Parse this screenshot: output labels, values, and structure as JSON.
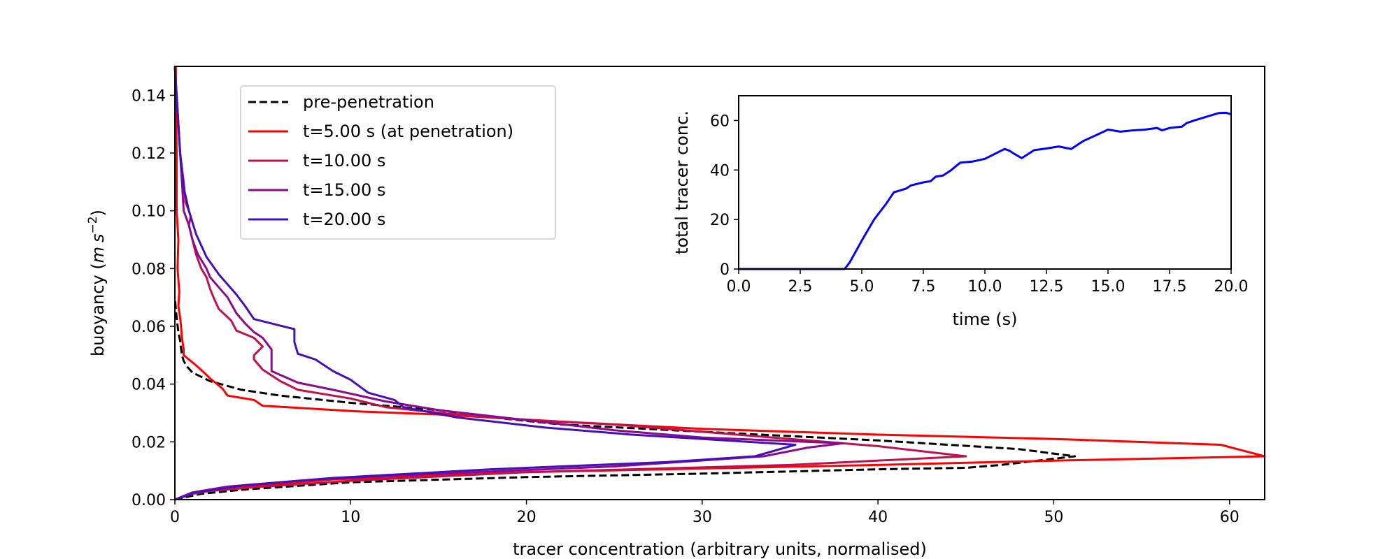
{
  "chart_data": [
    {
      "type": "line",
      "xlabel": "tracer concentration (arbitrary units, normalised)",
      "ylabel": "buoyancy ($m\\,s^{-2}$)",
      "ylabel_parts": {
        "prefix": "buoyancy (",
        "unit1": "m",
        "unit2": "s",
        "exponent": "−2",
        "suffix": ")"
      },
      "xlim": [
        0,
        62
      ],
      "ylim": [
        0,
        0.15
      ],
      "xticks": [
        0,
        10,
        20,
        30,
        40,
        50,
        60
      ],
      "yticks": [
        0.0,
        0.02,
        0.04,
        0.06,
        0.08,
        0.1,
        0.12,
        0.14
      ],
      "ytick_labels": [
        "0.00",
        "0.02",
        "0.04",
        "0.06",
        "0.08",
        "0.10",
        "0.12",
        "0.14"
      ],
      "xtick_labels": [
        "0",
        "10",
        "20",
        "30",
        "40",
        "50",
        "60"
      ],
      "grid": false,
      "legend_position": "upper-left",
      "series": [
        {
          "name": "pre-penetration",
          "color": "#000000",
          "dash": "dashed",
          "points": [
            [
              0,
              0.0
            ],
            [
              1.5,
              0.002
            ],
            [
              4,
              0.0035
            ],
            [
              10,
              0.006
            ],
            [
              20,
              0.0078
            ],
            [
              30,
              0.009
            ],
            [
              40,
              0.0105
            ],
            [
              45,
              0.011
            ],
            [
              47,
              0.012
            ],
            [
              51.2,
              0.015
            ],
            [
              48,
              0.0175
            ],
            [
              40,
              0.0205
            ],
            [
              30,
              0.0235
            ],
            [
              22,
              0.026
            ],
            [
              18,
              0.0285
            ],
            [
              15,
              0.031
            ],
            [
              10,
              0.0335
            ],
            [
              6,
              0.036
            ],
            [
              3.8,
              0.038
            ],
            [
              2,
              0.041
            ],
            [
              1,
              0.044
            ],
            [
              0.7,
              0.046
            ],
            [
              0.5,
              0.048
            ],
            [
              0.4,
              0.05
            ],
            [
              0.3,
              0.055
            ],
            [
              0.2,
              0.058
            ],
            [
              0.12,
              0.062
            ],
            [
              0.05,
              0.066
            ],
            [
              0,
              0.07
            ]
          ]
        },
        {
          "name": "t=5.00 s (at penetration)",
          "color": "#ff0000",
          "dash": "solid",
          "points": [
            [
              0,
              0.0
            ],
            [
              0.5,
              0.001
            ],
            [
              1,
              0.002
            ],
            [
              1.5,
              0.003
            ],
            [
              4,
              0.0045
            ],
            [
              9,
              0.007
            ],
            [
              20,
              0.0095
            ],
            [
              40,
              0.012
            ],
            [
              50,
              0.0135
            ],
            [
              62,
              0.015
            ],
            [
              59.5,
              0.019
            ],
            [
              50,
              0.021
            ],
            [
              40,
              0.0225
            ],
            [
              30,
              0.0245
            ],
            [
              22,
              0.027
            ],
            [
              15,
              0.0295
            ],
            [
              10.5,
              0.0305
            ],
            [
              5,
              0.0325
            ],
            [
              4.5,
              0.0345
            ],
            [
              3,
              0.036
            ],
            [
              2.7,
              0.0385
            ],
            [
              2,
              0.042
            ],
            [
              1.3,
              0.046
            ],
            [
              0.5,
              0.05
            ],
            [
              0.5,
              0.052
            ],
            [
              0.4,
              0.056
            ],
            [
              0.35,
              0.06
            ],
            [
              0.3,
              0.063
            ],
            [
              0.2,
              0.067
            ],
            [
              0.25,
              0.072
            ],
            [
              0.15,
              0.08
            ],
            [
              0.2,
              0.09
            ],
            [
              0.1,
              0.1
            ],
            [
              0.1,
              0.12
            ],
            [
              0.05,
              0.15
            ]
          ]
        },
        {
          "name": "t=10.00 s",
          "color": "#c1114b",
          "dash": "solid",
          "points": [
            [
              0,
              0.0
            ],
            [
              1,
              0.002
            ],
            [
              2,
              0.003
            ],
            [
              5,
              0.0045
            ],
            [
              10,
              0.0065
            ],
            [
              20,
              0.0095
            ],
            [
              35,
              0.012
            ],
            [
              45,
              0.015
            ],
            [
              40,
              0.0185
            ],
            [
              35,
              0.021
            ],
            [
              25,
              0.026
            ],
            [
              20,
              0.0275
            ],
            [
              16,
              0.0295
            ],
            [
              12,
              0.032
            ],
            [
              10,
              0.035
            ],
            [
              7,
              0.038
            ],
            [
              6,
              0.041
            ],
            [
              5,
              0.045
            ],
            [
              4.5,
              0.0485
            ],
            [
              4.5,
              0.05
            ],
            [
              5,
              0.053
            ],
            [
              4.5,
              0.056
            ],
            [
              3.5,
              0.0585
            ],
            [
              3.2,
              0.062
            ],
            [
              2.5,
              0.066
            ],
            [
              2.2,
              0.07
            ],
            [
              2,
              0.073
            ],
            [
              1.8,
              0.077
            ],
            [
              1.5,
              0.08
            ],
            [
              1.2,
              0.085
            ],
            [
              1,
              0.09
            ],
            [
              0.8,
              0.095
            ],
            [
              0.9,
              0.098
            ],
            [
              0.8,
              0.1
            ],
            [
              0.6,
              0.103
            ],
            [
              0.5,
              0.11
            ],
            [
              0.3,
              0.12
            ],
            [
              0.2,
              0.13
            ],
            [
              0.1,
              0.14
            ],
            [
              0,
              0.15
            ]
          ]
        },
        {
          "name": "t=15.00 s",
          "color": "#8b0a8e",
          "dash": "solid",
          "points": [
            [
              0,
              0.0
            ],
            [
              1,
              0.0025
            ],
            [
              3,
              0.0045
            ],
            [
              8,
              0.007
            ],
            [
              15,
              0.009
            ],
            [
              25,
              0.0115
            ],
            [
              33.5,
              0.015
            ],
            [
              36,
              0.018
            ],
            [
              38,
              0.0195
            ],
            [
              30,
              0.0215
            ],
            [
              25,
              0.024
            ],
            [
              20,
              0.0275
            ],
            [
              15,
              0.031
            ],
            [
              12,
              0.034
            ],
            [
              9,
              0.038
            ],
            [
              7,
              0.0405
            ],
            [
              5.5,
              0.0445
            ],
            [
              5.5,
              0.05
            ],
            [
              5.5,
              0.052
            ],
            [
              5,
              0.056
            ],
            [
              4.5,
              0.058
            ],
            [
              4,
              0.061
            ],
            [
              3.5,
              0.0645
            ],
            [
              3,
              0.07
            ],
            [
              2.5,
              0.0735
            ],
            [
              2,
              0.077
            ],
            [
              1.8,
              0.08
            ],
            [
              1.3,
              0.085
            ],
            [
              1,
              0.09
            ],
            [
              0.8,
              0.095
            ],
            [
              0.5,
              0.1
            ],
            [
              0.4,
              0.11
            ],
            [
              0.3,
              0.12
            ],
            [
              0.2,
              0.13
            ],
            [
              0.1,
              0.14
            ],
            [
              0,
              0.15
            ]
          ]
        },
        {
          "name": "t=20.00 s",
          "color": "#4410ba",
          "dash": "solid",
          "points": [
            [
              0,
              0.0
            ],
            [
              1.2,
              0.0025
            ],
            [
              4,
              0.005
            ],
            [
              9,
              0.0075
            ],
            [
              18,
              0.0105
            ],
            [
              28,
              0.013
            ],
            [
              33,
              0.015
            ],
            [
              35.3,
              0.019
            ],
            [
              26,
              0.0225
            ],
            [
              21,
              0.025
            ],
            [
              16,
              0.0285
            ],
            [
              13,
              0.032
            ],
            [
              12.5,
              0.0345
            ],
            [
              11,
              0.037
            ],
            [
              10,
              0.0415
            ],
            [
              9,
              0.0445
            ],
            [
              8,
              0.0485
            ],
            [
              7,
              0.0505
            ],
            [
              6.8,
              0.0545
            ],
            [
              6.8,
              0.059
            ],
            [
              5.5,
              0.061
            ],
            [
              4.5,
              0.0625
            ],
            [
              4,
              0.067
            ],
            [
              3.5,
              0.071
            ],
            [
              2.5,
              0.078
            ],
            [
              1.8,
              0.084
            ],
            [
              1.2,
              0.092
            ],
            [
              0.8,
              0.1
            ],
            [
              0.5,
              0.108
            ],
            [
              0.3,
              0.12
            ],
            [
              0.2,
              0.13
            ],
            [
              0.1,
              0.14
            ],
            [
              0,
              0.15
            ]
          ]
        }
      ]
    },
    {
      "type": "line",
      "inset": true,
      "xlabel": "time (s)",
      "ylabel": "total tracer conc.",
      "xlim": [
        0,
        20
      ],
      "ylim": [
        0,
        70
      ],
      "xticks": [
        0,
        2.5,
        5,
        7.5,
        10,
        12.5,
        15,
        17.5,
        20
      ],
      "xtick_labels": [
        "0.0",
        "2.5",
        "5.0",
        "7.5",
        "10.0",
        "12.5",
        "15.0",
        "17.5",
        "20.0"
      ],
      "yticks": [
        0,
        20,
        40,
        60
      ],
      "ytick_labels": [
        "0",
        "20",
        "40",
        "60"
      ],
      "grid": false,
      "series": [
        {
          "color": "#0000ff",
          "x": [
            0,
            1,
            2,
            3,
            4,
            4.1,
            4.3,
            4.5,
            5,
            5.5,
            6,
            6.3,
            6.8,
            7,
            7.5,
            7.8,
            8,
            8.3,
            8.6,
            9,
            9.5,
            10,
            10.5,
            10.8,
            11,
            11.2,
            11.5,
            12,
            12.5,
            13,
            13.5,
            14,
            14.5,
            15,
            15.5,
            16,
            16.5,
            17,
            17.2,
            17.5,
            18,
            18.2,
            18.5,
            19,
            19.5,
            19.8,
            20
          ],
          "y": [
            0,
            0,
            0,
            0,
            0,
            0,
            0,
            2.5,
            11.5,
            20,
            26.5,
            31,
            32.5,
            33.8,
            35,
            35.5,
            37.3,
            37.8,
            39.7,
            43,
            43.4,
            44.5,
            47,
            48.5,
            47.8,
            46.5,
            44.8,
            48,
            48.7,
            49.5,
            48.5,
            51.7,
            54,
            56.3,
            55.5,
            56,
            56.3,
            57,
            56,
            57,
            57.5,
            59,
            60,
            61.5,
            63,
            63.1,
            62.5
          ]
        }
      ]
    }
  ]
}
